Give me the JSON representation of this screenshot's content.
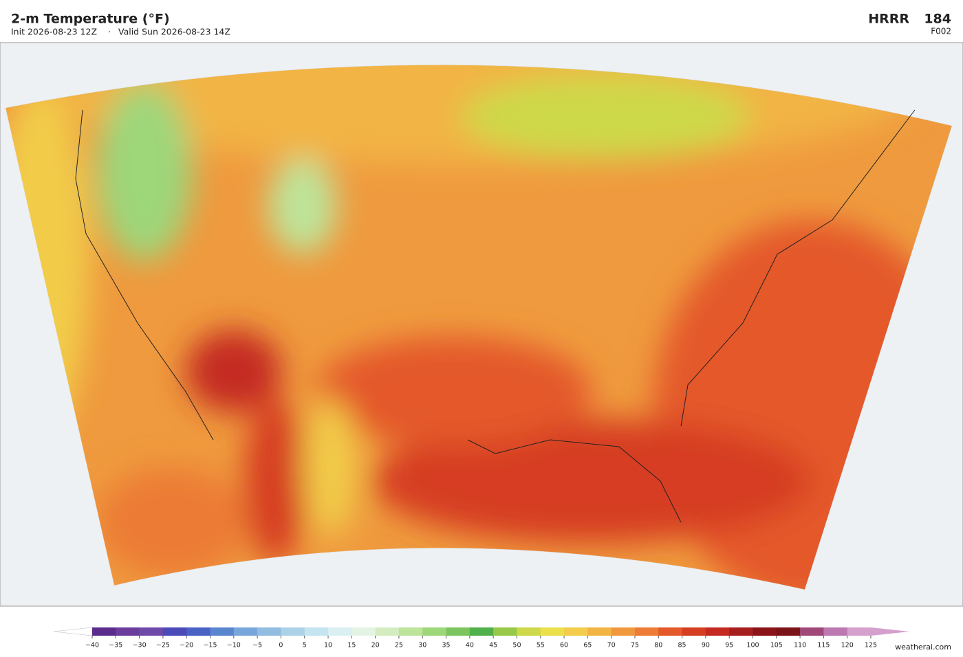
{
  "header": {
    "title": "2-m Temperature  (°F)",
    "init": "Init 2026-08-23 12Z",
    "separator": "·",
    "valid": "Valid Sun 2026-08-23 14Z",
    "model": "HRRR",
    "run": "184",
    "forecast_hour": "F002"
  },
  "colorbar": {
    "ticks": [
      {
        "value": -40,
        "label": "−40"
      },
      {
        "value": -35,
        "label": "−35"
      },
      {
        "value": -30,
        "label": "−30"
      },
      {
        "value": -25,
        "label": "−25"
      },
      {
        "value": -20,
        "label": "−20"
      },
      {
        "value": -15,
        "label": "−15"
      },
      {
        "value": -10,
        "label": "−10"
      },
      {
        "value": -5,
        "label": "−5"
      },
      0,
      5,
      10,
      15,
      20,
      25,
      30,
      35,
      40,
      45,
      50,
      55,
      60,
      65,
      70,
      75,
      80,
      85,
      90,
      95,
      100,
      105,
      110,
      115,
      120,
      125
    ],
    "colors": [
      "#5a2d8c",
      "#6a3c9c",
      "#6e4aa8",
      "#4a4ab8",
      "#4a62c4",
      "#5a86d0",
      "#79a6da",
      "#92bce0",
      "#acd2e8",
      "#c4e4ef",
      "#d9eff2",
      "#e4f4e4",
      "#d4ecc0",
      "#bde49a",
      "#9ed67a",
      "#7cc55e",
      "#52b04a",
      "#98c84a",
      "#cdd94a",
      "#ebe04a",
      "#f2cc4a",
      "#f2b444",
      "#f0983e",
      "#ec7c36",
      "#e4582a",
      "#d63e22",
      "#c42a20",
      "#a61e1e",
      "#8a1418",
      "#7a1418",
      "#a04878",
      "#bc78b0",
      "#d4a0cc"
    ]
  },
  "footer": {
    "credit": "weatherai.com"
  }
}
